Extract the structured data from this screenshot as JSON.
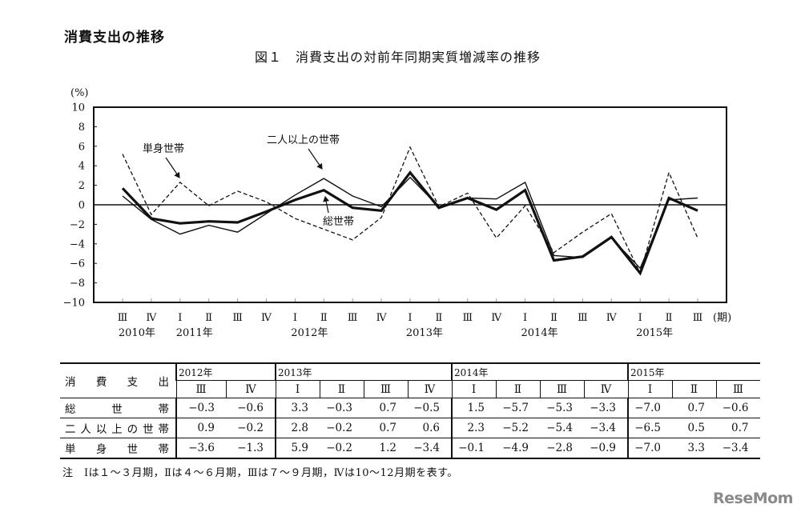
{
  "page": {
    "heading": "消費支出の推移",
    "figure_title": "図１　消費支出の対前年同期実質増減率の推移",
    "note": "注　Ⅰは１～３月期，Ⅱは４～６月期，Ⅲは７～９月期，Ⅳは10～12月期を表す。",
    "logo": "ReseMom"
  },
  "chart_data": {
    "type": "line",
    "title": "図１　消費支出の対前年同期実質増減率の推移",
    "ylabel": "(%)",
    "xlabel": "(期)",
    "ylim": [
      -10,
      10
    ],
    "yticks": [
      10,
      8,
      6,
      4,
      2,
      0,
      -2,
      -4,
      -6,
      -8,
      -10
    ],
    "grid": false,
    "legend_position": "inline annotations",
    "x": [
      "2010 III",
      "2010 IV",
      "2011 I",
      "2011 II",
      "2011 III",
      "2011 IV",
      "2012 I",
      "2012 II",
      "2012 III",
      "2012 IV",
      "2013 I",
      "2013 II",
      "2013 III",
      "2013 IV",
      "2014 I",
      "2014 II",
      "2014 III",
      "2014 IV",
      "2015 I",
      "2015 II",
      "2015 III"
    ],
    "x_tick_labels": [
      "Ⅲ",
      "Ⅳ",
      "Ⅰ",
      "Ⅱ",
      "Ⅲ",
      "Ⅳ",
      "Ⅰ",
      "Ⅱ",
      "Ⅲ",
      "Ⅳ",
      "Ⅰ",
      "Ⅱ",
      "Ⅲ",
      "Ⅳ",
      "Ⅰ",
      "Ⅱ",
      "Ⅲ",
      "Ⅳ",
      "Ⅰ",
      "Ⅱ",
      "Ⅲ"
    ],
    "year_labels": [
      {
        "label": "2010年",
        "index": 0.5
      },
      {
        "label": "2011年",
        "index": 2.5
      },
      {
        "label": "2012年",
        "index": 6.5
      },
      {
        "label": "2013年",
        "index": 10.5
      },
      {
        "label": "2014年",
        "index": 14.5
      },
      {
        "label": "2015年",
        "index": 18.5
      }
    ],
    "series": [
      {
        "name": "総世帯",
        "style": "thick",
        "values": [
          1.7,
          -1.4,
          -1.9,
          -1.7,
          -1.8,
          -0.7,
          0.5,
          1.5,
          -0.3,
          -0.6,
          3.3,
          -0.3,
          0.7,
          -0.5,
          1.5,
          -5.7,
          -5.3,
          -3.3,
          -7.0,
          0.7,
          -0.6
        ]
      },
      {
        "name": "二人以上の世帯",
        "style": "thin",
        "values": [
          0.9,
          -1.5,
          -3.0,
          -2.1,
          -2.8,
          -0.9,
          1.0,
          2.7,
          0.9,
          -0.2,
          2.8,
          -0.2,
          0.7,
          0.6,
          2.3,
          -5.2,
          -5.4,
          -3.4,
          -6.5,
          0.5,
          0.7
        ]
      },
      {
        "name": "単身世帯",
        "style": "dashed",
        "values": [
          5.2,
          -1.0,
          2.3,
          -0.1,
          1.4,
          0.3,
          -1.4,
          -2.5,
          -3.6,
          -1.3,
          5.9,
          -0.2,
          1.2,
          -3.4,
          -0.1,
          -4.9,
          -2.8,
          -0.9,
          -7.0,
          3.3,
          -3.4
        ]
      }
    ],
    "annotations": [
      {
        "text": "単身世帯",
        "target": "2011 I"
      },
      {
        "text": "二人以上の世帯",
        "target": "2012 II"
      },
      {
        "text": "総世帯",
        "target": "2012 II"
      }
    ]
  },
  "table": {
    "row_header_label": "消　費　支　出",
    "years": [
      {
        "label": "2012年",
        "quarters": [
          "Ⅲ",
          "Ⅳ"
        ]
      },
      {
        "label": "2013年",
        "quarters": [
          "Ⅰ",
          "Ⅱ",
          "Ⅲ",
          "Ⅳ"
        ]
      },
      {
        "label": "2014年",
        "quarters": [
          "Ⅰ",
          "Ⅱ",
          "Ⅲ",
          "Ⅳ"
        ]
      },
      {
        "label": "2015年",
        "quarters": [
          "Ⅰ",
          "Ⅱ",
          "Ⅲ"
        ]
      }
    ],
    "rows": [
      {
        "label": "総　　世　　帯",
        "values": [
          "−0.3",
          "−0.6",
          "3.3",
          "−0.3",
          "0.7",
          "−0.5",
          "1.5",
          "−5.7",
          "−5.3",
          "−3.3",
          "−7.0",
          "0.7",
          "−0.6"
        ]
      },
      {
        "label": "二人以上の世帯",
        "values": [
          "0.9",
          "−0.2",
          "2.8",
          "−0.2",
          "0.7",
          "0.6",
          "2.3",
          "−5.2",
          "−5.4",
          "−3.4",
          "−6.5",
          "0.5",
          "0.7"
        ]
      },
      {
        "label": "単　身　世　帯",
        "values": [
          "−3.6",
          "−1.3",
          "5.9",
          "−0.2",
          "1.2",
          "−3.4",
          "−0.1",
          "−4.9",
          "−2.8",
          "−0.9",
          "−7.0",
          "3.3",
          "−3.4"
        ]
      }
    ]
  }
}
